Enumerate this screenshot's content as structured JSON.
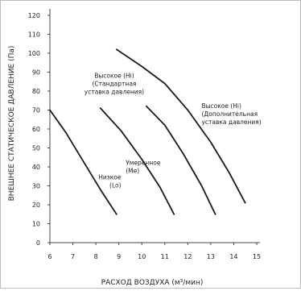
{
  "chart_data": {
    "type": "line",
    "title": "",
    "xlabel": "РАСХОД ВОЗДУХА (м³/мин)",
    "ylabel": "ВНЕШНЕЕ СТАТИЧЕСКОЕ ДАВЛЕНИЕ (Па)",
    "xlim": [
      6,
      15
    ],
    "ylim": [
      0,
      120
    ],
    "xticks": [
      6,
      7,
      8,
      9,
      10,
      11,
      12,
      13,
      14,
      15
    ],
    "yticks": [
      0,
      10,
      20,
      30,
      40,
      50,
      60,
      70,
      80,
      90,
      100,
      110,
      120
    ],
    "grid": false,
    "series": [
      {
        "name": "Низкое (Lo)",
        "color": "#1a1a1a",
        "points": [
          [
            6.0,
            70
          ],
          [
            6.7,
            58
          ],
          [
            7.5,
            42
          ],
          [
            8.2,
            28
          ],
          [
            8.9,
            15
          ]
        ]
      },
      {
        "name": "Умеренное (Me)",
        "color": "#1a1a1a",
        "points": [
          [
            8.2,
            71
          ],
          [
            9.1,
            59
          ],
          [
            10.0,
            44
          ],
          [
            10.8,
            29
          ],
          [
            11.4,
            15
          ]
        ]
      },
      {
        "name": "Высокое (Hi) (Стандартная уставка давления)",
        "color": "#1a1a1a",
        "points": [
          [
            10.2,
            72
          ],
          [
            11.0,
            62
          ],
          [
            11.8,
            47
          ],
          [
            12.6,
            30
          ],
          [
            13.2,
            15
          ]
        ]
      },
      {
        "name": "Высокое (Hi) (Дополнительная уставка давления)",
        "color": "#1a1a1a",
        "points": [
          [
            8.9,
            102
          ],
          [
            10.0,
            93
          ],
          [
            11.0,
            84
          ],
          [
            12.0,
            70
          ],
          [
            13.0,
            53
          ],
          [
            13.8,
            37
          ],
          [
            14.5,
            21
          ]
        ]
      }
    ],
    "annotations": [
      {
        "lines": [
          "Низкое",
          "(Lo)"
        ],
        "anchor": "end",
        "x": 9.1,
        "y": 33.5
      },
      {
        "lines": [
          "Умеренное",
          "(Me)"
        ],
        "anchor": "start",
        "x": 9.3,
        "y": 41
      },
      {
        "lines": [
          "Высокое (Hi)",
          "(Стандартная",
          "уставка давления)"
        ],
        "anchor": "middle",
        "x": 8.8,
        "y": 87
      },
      {
        "lines": [
          "Высокое (Hi)",
          "(Дополнительная",
          "уставка давления)"
        ],
        "anchor": "start",
        "x": 12.6,
        "y": 71
      }
    ]
  }
}
